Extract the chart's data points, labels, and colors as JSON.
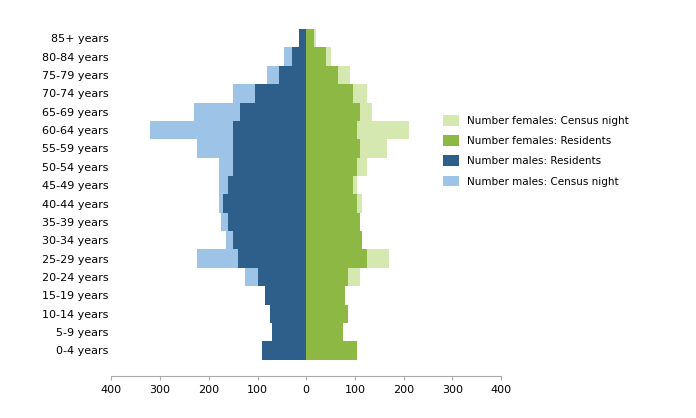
{
  "age_groups": [
    "0-4 years",
    "5-9 years",
    "10-14 years",
    "15-19 years",
    "20-24 years",
    "25-29 years",
    "30-34 years",
    "35-39 years",
    "40-44 years",
    "45-49 years",
    "50-54 years",
    "55-59 years",
    "60-64 years",
    "65-69 years",
    "70-74 years",
    "75-79 years",
    "80-84 years",
    "85+ years"
  ],
  "males_residents": [
    90,
    70,
    75,
    85,
    100,
    140,
    150,
    160,
    170,
    160,
    150,
    150,
    150,
    135,
    105,
    55,
    30,
    15
  ],
  "males_census": [
    55,
    50,
    60,
    70,
    125,
    225,
    165,
    175,
    180,
    180,
    180,
    225,
    320,
    230,
    150,
    80,
    45,
    15
  ],
  "females_residents": [
    105,
    75,
    85,
    80,
    85,
    125,
    115,
    110,
    105,
    95,
    105,
    110,
    105,
    110,
    95,
    65,
    40,
    15
  ],
  "females_census": [
    105,
    75,
    85,
    80,
    110,
    170,
    115,
    110,
    115,
    105,
    125,
    165,
    210,
    135,
    125,
    90,
    50,
    20
  ],
  "color_males_residents": "#2e5f8a",
  "color_males_census": "#9dc3e6",
  "color_females_residents": "#8db843",
  "color_females_census": "#d5e8b0",
  "xlim": [
    -400,
    400
  ],
  "xticks": [
    -400,
    -300,
    -200,
    -100,
    0,
    100,
    200,
    300,
    400
  ],
  "xticklabels": [
    "400",
    "300",
    "200",
    "100",
    "0",
    "100",
    "200",
    "300",
    "400"
  ],
  "legend_labels": [
    "Number females: Census night",
    "Number females: Residents",
    "Number males: Residents",
    "Number males: Census night"
  ],
  "legend_colors": [
    "#d5e8b0",
    "#8db843",
    "#2e5f8a",
    "#9dc3e6"
  ]
}
